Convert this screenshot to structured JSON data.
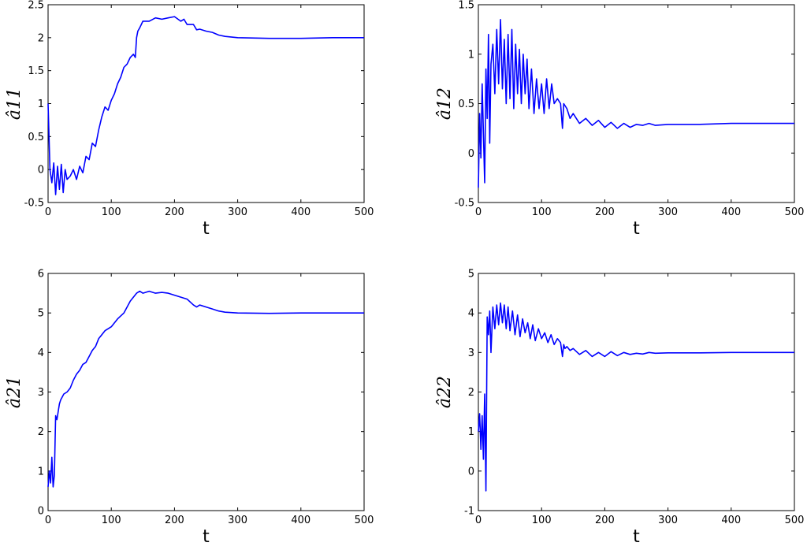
{
  "chart_data": [
    {
      "type": "line",
      "panel": "top-left",
      "xlabel": "t",
      "ylabel": "â11",
      "xlim": [
        0,
        500
      ],
      "ylim": [
        -0.5,
        2.5
      ],
      "xticks": [
        "0",
        "100",
        "200",
        "300",
        "400",
        "500"
      ],
      "yticks": [
        "-0.5",
        "0",
        "0.5",
        "1",
        "1.5",
        "2",
        "2.5"
      ],
      "grid": false,
      "series": [
        {
          "color": "#0000ff",
          "x": [
            0,
            3,
            6,
            9,
            12,
            15,
            18,
            21,
            24,
            27,
            30,
            35,
            40,
            45,
            50,
            55,
            60,
            65,
            70,
            75,
            80,
            85,
            90,
            95,
            100,
            105,
            110,
            115,
            120,
            125,
            130,
            135,
            138,
            140,
            142,
            145,
            150,
            160,
            170,
            180,
            190,
            200,
            210,
            215,
            220,
            230,
            235,
            240,
            250,
            260,
            270,
            280,
            300,
            350,
            400,
            450,
            500
          ],
          "y": [
            1.0,
            0.0,
            -0.2,
            0.1,
            -0.38,
            0.05,
            -0.3,
            0.08,
            -0.35,
            0.0,
            -0.15,
            -0.1,
            0.0,
            -0.15,
            0.05,
            -0.05,
            0.2,
            0.15,
            0.4,
            0.35,
            0.6,
            0.8,
            0.95,
            0.9,
            1.05,
            1.15,
            1.3,
            1.4,
            1.55,
            1.6,
            1.7,
            1.75,
            1.7,
            2.0,
            2.1,
            2.15,
            2.25,
            2.25,
            2.3,
            2.28,
            2.3,
            2.32,
            2.25,
            2.28,
            2.2,
            2.2,
            2.12,
            2.13,
            2.1,
            2.08,
            2.04,
            2.02,
            2.0,
            1.99,
            1.99,
            2.0,
            2.0
          ]
        }
      ]
    },
    {
      "type": "line",
      "panel": "top-right",
      "xlabel": "t",
      "ylabel": "â12",
      "xlim": [
        0,
        500
      ],
      "ylim": [
        -0.5,
        1.5
      ],
      "xticks": [
        "0",
        "100",
        "200",
        "300",
        "400",
        "500"
      ],
      "yticks": [
        "-0.5",
        "0",
        "0.5",
        "1",
        "1.5"
      ],
      "grid": false,
      "series": [
        {
          "color": "#0000ff",
          "x": [
            0,
            2,
            4,
            6,
            8,
            10,
            12,
            14,
            16,
            18,
            20,
            23,
            26,
            29,
            32,
            35,
            38,
            41,
            44,
            47,
            50,
            53,
            56,
            59,
            62,
            65,
            68,
            71,
            74,
            77,
            80,
            84,
            88,
            92,
            96,
            100,
            104,
            108,
            112,
            116,
            120,
            125,
            130,
            133,
            135,
            137,
            140,
            145,
            150,
            160,
            170,
            180,
            190,
            200,
            210,
            220,
            230,
            240,
            250,
            260,
            270,
            280,
            300,
            350,
            400,
            450,
            500
          ],
          "y": [
            -0.35,
            0.4,
            -0.05,
            0.7,
            0.2,
            -0.3,
            0.85,
            0.35,
            1.2,
            0.1,
            0.9,
            1.1,
            0.6,
            1.25,
            0.7,
            1.35,
            0.65,
            1.15,
            0.5,
            1.2,
            0.55,
            1.25,
            0.45,
            1.1,
            0.6,
            1.05,
            0.5,
            1.0,
            0.6,
            0.95,
            0.45,
            0.85,
            0.4,
            0.75,
            0.45,
            0.7,
            0.4,
            0.75,
            0.45,
            0.7,
            0.5,
            0.55,
            0.5,
            0.25,
            0.5,
            0.48,
            0.45,
            0.35,
            0.4,
            0.3,
            0.35,
            0.28,
            0.33,
            0.26,
            0.31,
            0.25,
            0.3,
            0.26,
            0.29,
            0.28,
            0.3,
            0.28,
            0.29,
            0.29,
            0.3,
            0.3,
            0.3
          ]
        }
      ]
    },
    {
      "type": "line",
      "panel": "bottom-left",
      "xlabel": "t",
      "ylabel": "â21",
      "xlim": [
        0,
        500
      ],
      "ylim": [
        0,
        6
      ],
      "xticks": [
        "0",
        "100",
        "200",
        "300",
        "400",
        "500"
      ],
      "yticks": [
        "0",
        "1",
        "2",
        "3",
        "4",
        "5",
        "6"
      ],
      "grid": false,
      "series": [
        {
          "color": "#0000ff",
          "x": [
            0,
            2,
            4,
            6,
            8,
            10,
            12,
            14,
            16,
            18,
            20,
            25,
            30,
            35,
            40,
            45,
            50,
            55,
            60,
            65,
            70,
            75,
            80,
            90,
            100,
            110,
            120,
            130,
            140,
            145,
            150,
            160,
            170,
            180,
            190,
            200,
            210,
            220,
            230,
            235,
            240,
            250,
            260,
            270,
            280,
            300,
            350,
            400,
            450,
            500
          ],
          "y": [
            0.6,
            1.0,
            0.7,
            1.35,
            0.6,
            0.9,
            2.4,
            2.3,
            2.5,
            2.7,
            2.8,
            2.95,
            3.0,
            3.1,
            3.3,
            3.45,
            3.55,
            3.7,
            3.75,
            3.9,
            4.05,
            4.15,
            4.35,
            4.55,
            4.65,
            4.85,
            5.0,
            5.3,
            5.5,
            5.55,
            5.5,
            5.55,
            5.5,
            5.52,
            5.5,
            5.45,
            5.4,
            5.35,
            5.2,
            5.15,
            5.2,
            5.15,
            5.1,
            5.05,
            5.02,
            5.0,
            4.99,
            5.0,
            5.0,
            5.0
          ]
        }
      ]
    },
    {
      "type": "line",
      "panel": "bottom-right",
      "xlabel": "t",
      "ylabel": "â22",
      "xlim": [
        0,
        500
      ],
      "ylim": [
        -1,
        5
      ],
      "xticks": [
        "0",
        "100",
        "200",
        "300",
        "400",
        "500"
      ],
      "yticks": [
        "-1",
        "0",
        "1",
        "2",
        "3",
        "4",
        "5"
      ],
      "grid": false,
      "series": [
        {
          "color": "#0000ff",
          "x": [
            0,
            2,
            4,
            6,
            8,
            10,
            12,
            14,
            16,
            18,
            20,
            23,
            26,
            29,
            32,
            35,
            38,
            41,
            44,
            47,
            50,
            54,
            58,
            62,
            66,
            70,
            74,
            78,
            82,
            86,
            90,
            95,
            100,
            105,
            110,
            115,
            120,
            125,
            130,
            133,
            135,
            137,
            140,
            145,
            150,
            160,
            170,
            180,
            190,
            200,
            210,
            220,
            230,
            240,
            250,
            260,
            270,
            280,
            300,
            350,
            400,
            450,
            500
          ],
          "y": [
            1.0,
            1.45,
            0.55,
            1.4,
            0.3,
            1.95,
            -0.5,
            3.9,
            3.45,
            4.05,
            3.0,
            4.15,
            3.6,
            4.2,
            3.7,
            4.25,
            3.75,
            4.2,
            3.6,
            4.15,
            3.55,
            4.05,
            3.45,
            3.95,
            3.4,
            3.85,
            3.5,
            3.75,
            3.35,
            3.7,
            3.3,
            3.6,
            3.35,
            3.5,
            3.25,
            3.45,
            3.2,
            3.35,
            3.25,
            2.9,
            3.2,
            3.1,
            3.15,
            3.05,
            3.1,
            2.95,
            3.05,
            2.9,
            3.0,
            2.9,
            3.02,
            2.92,
            3.0,
            2.95,
            2.98,
            2.96,
            3.0,
            2.98,
            2.99,
            2.99,
            3.0,
            3.0,
            3.0
          ]
        }
      ]
    }
  ]
}
